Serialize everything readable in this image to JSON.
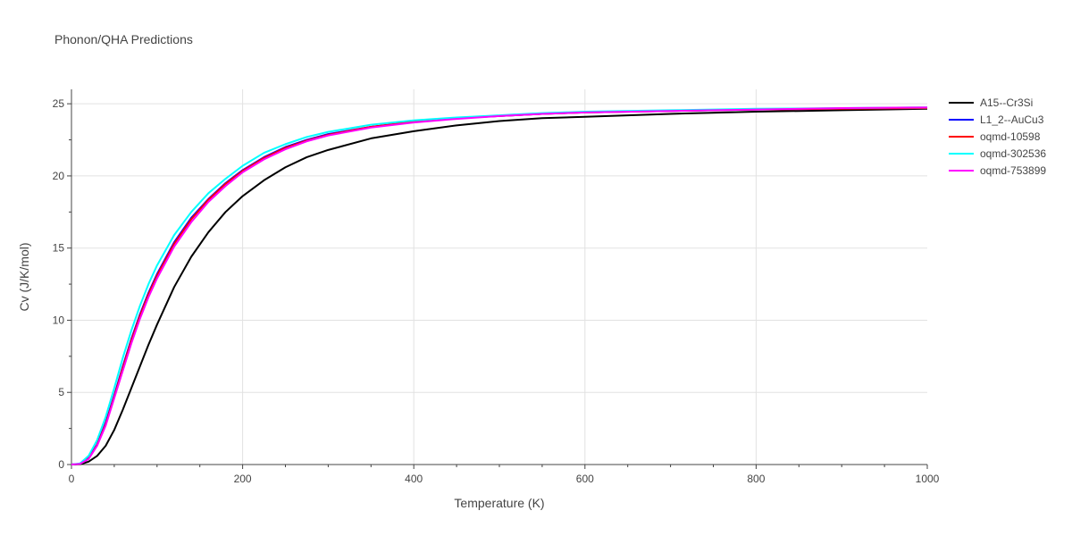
{
  "chart_data": {
    "type": "line",
    "title": "Phonon/QHA Predictions",
    "xlabel": "Temperature (K)",
    "ylabel": "Cv (J/K/mol)",
    "xlim": [
      0,
      1000
    ],
    "ylim": [
      0,
      26
    ],
    "x_ticks": [
      "0",
      "200",
      "400",
      "600",
      "800",
      "1000"
    ],
    "y_ticks": [
      "0",
      "5",
      "10",
      "15",
      "20",
      "25"
    ],
    "grid": true,
    "legend_position": "top-right",
    "series": [
      {
        "name": "A15--Cr3Si",
        "color": "#000000",
        "x": [
          0,
          10,
          20,
          30,
          40,
          50,
          60,
          70,
          80,
          90,
          100,
          120,
          140,
          160,
          180,
          200,
          225,
          250,
          275,
          300,
          350,
          400,
          450,
          500,
          550,
          600,
          700,
          800,
          900,
          1000
        ],
        "y": [
          0,
          0.02,
          0.2,
          0.6,
          1.3,
          2.4,
          3.8,
          5.3,
          6.8,
          8.3,
          9.7,
          12.3,
          14.4,
          16.1,
          17.5,
          18.6,
          19.7,
          20.6,
          21.3,
          21.8,
          22.6,
          23.1,
          23.5,
          23.8,
          24.0,
          24.1,
          24.3,
          24.45,
          24.55,
          24.65
        ]
      },
      {
        "name": "L1_2--AuCu3",
        "color": "#0000ff",
        "x": [
          0,
          10,
          20,
          30,
          40,
          50,
          60,
          70,
          80,
          90,
          100,
          120,
          140,
          160,
          180,
          200,
          225,
          250,
          275,
          300,
          350,
          400,
          450,
          500,
          550,
          600,
          700,
          800,
          900,
          1000
        ],
        "y": [
          0,
          0.05,
          0.45,
          1.4,
          2.9,
          4.8,
          6.8,
          8.7,
          10.4,
          11.9,
          13.2,
          15.4,
          17.1,
          18.4,
          19.5,
          20.4,
          21.3,
          22.0,
          22.5,
          22.9,
          23.4,
          23.75,
          24.0,
          24.15,
          24.3,
          24.4,
          24.5,
          24.6,
          24.65,
          24.7
        ]
      },
      {
        "name": "oqmd-10598",
        "color": "#ff0000",
        "x": [
          0,
          10,
          20,
          30,
          40,
          50,
          60,
          70,
          80,
          90,
          100,
          120,
          140,
          160,
          180,
          200,
          225,
          250,
          275,
          300,
          350,
          400,
          450,
          500,
          550,
          600,
          700,
          800,
          900,
          1000
        ],
        "y": [
          0,
          0.05,
          0.4,
          1.35,
          2.8,
          4.7,
          6.7,
          8.6,
          10.3,
          11.8,
          13.1,
          15.3,
          17.0,
          18.35,
          19.45,
          20.35,
          21.25,
          21.95,
          22.45,
          22.85,
          23.4,
          23.75,
          24.0,
          24.15,
          24.3,
          24.4,
          24.5,
          24.6,
          24.65,
          24.7
        ]
      },
      {
        "name": "oqmd-302536",
        "color": "#00ffff",
        "x": [
          0,
          10,
          20,
          30,
          40,
          50,
          60,
          70,
          80,
          90,
          100,
          120,
          140,
          160,
          180,
          200,
          225,
          250,
          275,
          300,
          350,
          400,
          450,
          500,
          550,
          600,
          700,
          800,
          900,
          1000
        ],
        "y": [
          0,
          0.08,
          0.6,
          1.7,
          3.3,
          5.3,
          7.4,
          9.3,
          11.0,
          12.5,
          13.8,
          15.9,
          17.5,
          18.8,
          19.8,
          20.7,
          21.6,
          22.2,
          22.7,
          23.05,
          23.55,
          23.85,
          24.05,
          24.2,
          24.35,
          24.45,
          24.55,
          24.65,
          24.7,
          24.75
        ]
      },
      {
        "name": "oqmd-753899",
        "color": "#ff00ff",
        "x": [
          0,
          10,
          20,
          30,
          40,
          50,
          60,
          70,
          80,
          90,
          100,
          120,
          140,
          160,
          180,
          200,
          225,
          250,
          275,
          300,
          350,
          400,
          450,
          500,
          550,
          600,
          700,
          800,
          900,
          1000
        ],
        "y": [
          0,
          0.05,
          0.38,
          1.3,
          2.7,
          4.6,
          6.5,
          8.4,
          10.1,
          11.6,
          12.9,
          15.1,
          16.8,
          18.2,
          19.3,
          20.25,
          21.15,
          21.85,
          22.4,
          22.8,
          23.35,
          23.7,
          23.95,
          24.15,
          24.3,
          24.4,
          24.5,
          24.6,
          24.7,
          24.75
        ]
      }
    ]
  }
}
